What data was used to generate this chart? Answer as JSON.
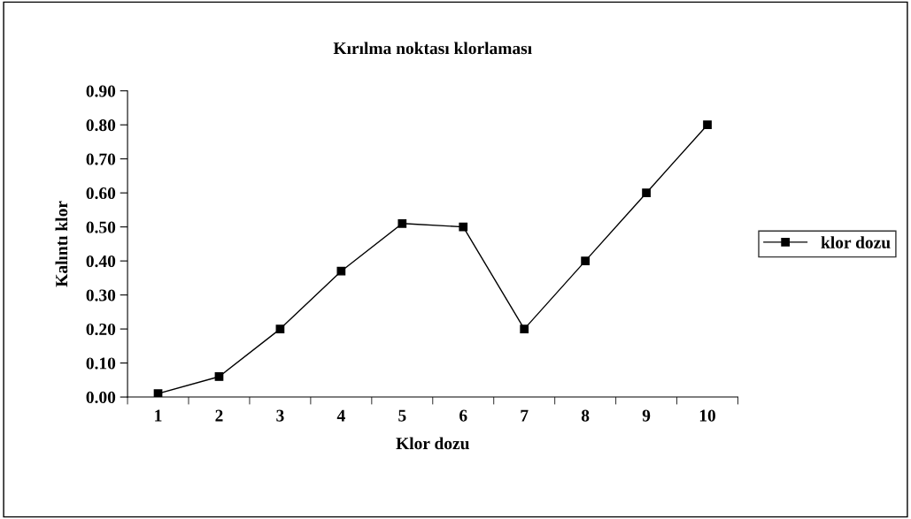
{
  "chart_data": {
    "type": "line",
    "title": "Kırılma noktası klorlaması",
    "xlabel": "Klor dozu",
    "ylabel": "Kalıntı klor",
    "categories": [
      "1",
      "2",
      "3",
      "4",
      "5",
      "6",
      "7",
      "8",
      "9",
      "10"
    ],
    "series": [
      {
        "name": "klor dozu",
        "color": "#000000",
        "values": [
          0.01,
          0.06,
          0.2,
          0.37,
          0.51,
          0.5,
          0.2,
          0.4,
          0.6,
          0.8
        ]
      }
    ],
    "ylim": [
      0,
      0.9
    ],
    "yticks": [
      {
        "value": 0,
        "label": "0.00"
      },
      {
        "value": 0.1,
        "label": "0.10"
      },
      {
        "value": 0.2,
        "label": "0.20"
      },
      {
        "value": 0.3,
        "label": "0.30"
      },
      {
        "value": 0.4,
        "label": "0.40"
      },
      {
        "value": 0.5,
        "label": "0.50"
      },
      {
        "value": 0.6,
        "label": "0.60"
      },
      {
        "value": 0.7,
        "label": "0.70"
      },
      {
        "value": 0.8,
        "label": "0.80"
      },
      {
        "value": 0.9,
        "label": "0.90"
      }
    ],
    "grid": false,
    "legend": "right",
    "marker": "square",
    "line_style": "solid"
  }
}
